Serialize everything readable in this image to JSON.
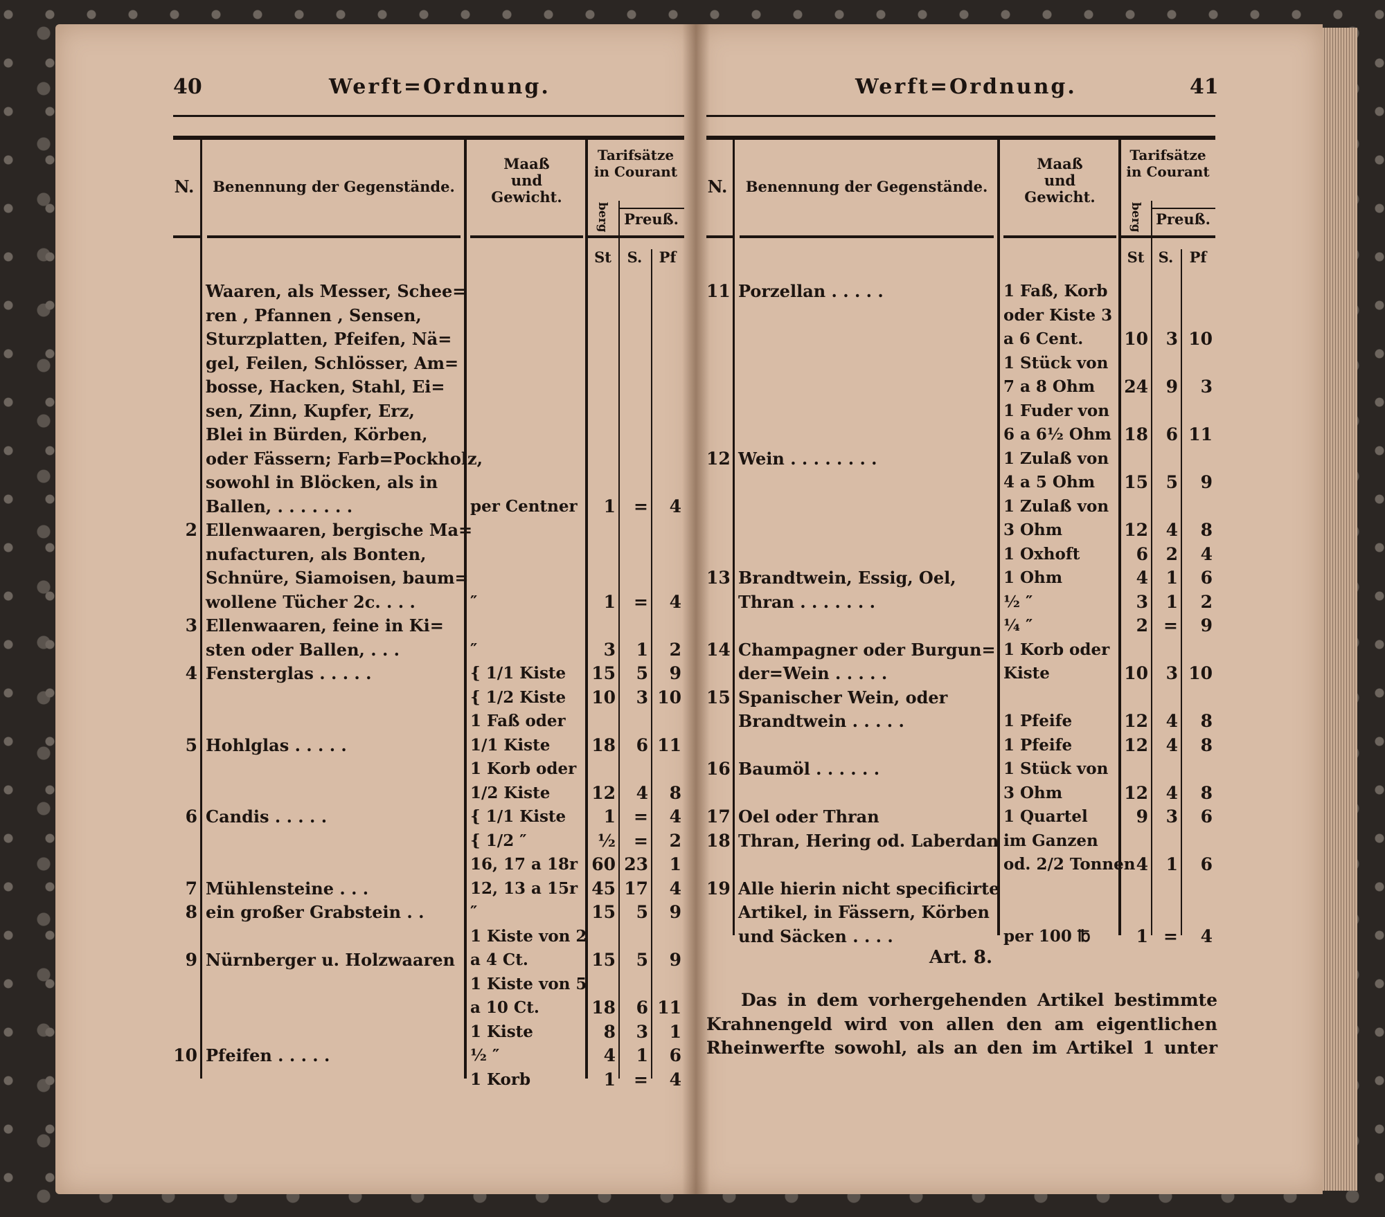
{
  "left_page": {
    "page_number": "40",
    "running_head": "Werft=Ordnung.",
    "headers": {
      "n": "N.",
      "name": "Benennung der Gegenstände.",
      "maass": "Maaß und Gewicht.",
      "tarif": "Tarifsätze in Courant",
      "berg": "berg",
      "preuss": "Preuß.",
      "st": "St",
      "s": "S.",
      "pf": "Pf"
    },
    "lines": [
      [
        "",
        "Waaren, als Messer, Schee=",
        "",
        "",
        "",
        ""
      ],
      [
        "",
        "ren , Pfannen , Sensen,",
        "",
        "",
        "",
        ""
      ],
      [
        "",
        "Sturzplatten, Pfeifen, Nä=",
        "",
        "",
        "",
        ""
      ],
      [
        "",
        "gel, Feilen, Schlösser, Am=",
        "",
        "",
        "",
        ""
      ],
      [
        "",
        "bosse, Hacken, Stahl, Ei=",
        "",
        "",
        "",
        ""
      ],
      [
        "",
        "sen, Zinn, Kupfer, Erz,",
        "",
        "",
        "",
        ""
      ],
      [
        "",
        "Blei in Bürden, Körben,",
        "",
        "",
        "",
        ""
      ],
      [
        "",
        "oder Fässern; Farb=Pockholz,",
        "",
        "",
        "",
        ""
      ],
      [
        "",
        "sowohl in Blöcken, als in",
        "",
        "",
        "",
        ""
      ],
      [
        "",
        "Ballen, . . . . . . .",
        "per Centner",
        "1",
        "=",
        "4"
      ],
      [
        "2",
        "Ellenwaaren, bergische Ma=",
        "",
        "",
        "",
        ""
      ],
      [
        "",
        "nufacturen, als Bonten,",
        "",
        "",
        "",
        ""
      ],
      [
        "",
        "Schnüre, Siamoisen, baum=",
        "",
        "",
        "",
        ""
      ],
      [
        "",
        "wollene Tücher 2c. . . .",
        "″",
        "1",
        "=",
        "4"
      ],
      [
        "3",
        "Ellenwaaren, feine in Ki=",
        "",
        "",
        "",
        ""
      ],
      [
        "",
        "sten oder Ballen, . . .",
        "″",
        "3",
        "1",
        "2"
      ],
      [
        "4",
        "Fensterglas . . . . .",
        "{ 1/1 Kiste",
        "15",
        "5",
        "9"
      ],
      [
        "",
        "",
        "{ 1/2 Kiste",
        "10",
        "3",
        "10"
      ],
      [
        "",
        "",
        "1 Faß oder",
        "",
        "",
        ""
      ],
      [
        "5",
        "Hohlglas . . . . .",
        "1/1 Kiste",
        "18",
        "6",
        "11"
      ],
      [
        "",
        "",
        "1 Korb oder",
        "",
        "",
        ""
      ],
      [
        "",
        "",
        "1/2 Kiste",
        "12",
        "4",
        "8"
      ],
      [
        "6",
        "Candis . . . . .",
        "{ 1/1 Kiste",
        "1",
        "=",
        "4"
      ],
      [
        "",
        "",
        "{ 1/2 ″",
        "½",
        "=",
        "2"
      ],
      [
        "",
        "",
        "16, 17 a 18r",
        "60",
        "23",
        "1"
      ],
      [
        "7",
        "Mühlensteine . . .",
        "12, 13 a 15r",
        "45",
        "17",
        "4"
      ],
      [
        "8",
        "ein großer Grabstein . .",
        "″",
        "15",
        "5",
        "9"
      ],
      [
        "",
        "",
        "1 Kiste von 2",
        "",
        "",
        ""
      ],
      [
        "9",
        "Nürnberger u. Holzwaaren",
        "a 4 Ct.",
        "15",
        "5",
        "9"
      ],
      [
        "",
        "",
        "1 Kiste von 5",
        "",
        "",
        ""
      ],
      [
        "",
        "",
        "a 10 Ct.",
        "18",
        "6",
        "11"
      ],
      [
        "",
        "",
        "1 Kiste",
        "8",
        "3",
        "1"
      ],
      [
        "10",
        "Pfeifen . . . . .",
        "½ ″",
        "4",
        "1",
        "6"
      ],
      [
        "",
        "",
        "1 Korb",
        "1",
        "=",
        "4"
      ]
    ]
  },
  "right_page": {
    "page_number": "41",
    "running_head": "Werft=Ordnung.",
    "headers": {
      "n": "N.",
      "name": "Benennung der Gegenstände.",
      "maass": "Maaß und Gewicht.",
      "tarif": "Tarifsätze in Courant",
      "berg": "berg",
      "preuss": "Preuß.",
      "st": "St",
      "s": "S.",
      "pf": "Pf"
    },
    "lines": [
      [
        "11",
        "Porzellan . . . . .",
        "1 Faß, Korb",
        "",
        "",
        ""
      ],
      [
        "",
        "",
        "oder Kiste 3",
        "",
        "",
        ""
      ],
      [
        "",
        "",
        "a 6 Cent.",
        "10",
        "3",
        "10"
      ],
      [
        "",
        "",
        "1 Stück von",
        "",
        "",
        ""
      ],
      [
        "",
        "",
        "7 a 8 Ohm",
        "24",
        "9",
        "3"
      ],
      [
        "",
        "",
        "1 Fuder von",
        "",
        "",
        ""
      ],
      [
        "",
        "",
        "6 a 6½ Ohm",
        "18",
        "6",
        "11"
      ],
      [
        "12",
        "Wein . . . . . . . .",
        "1 Zulaß von",
        "",
        "",
        ""
      ],
      [
        "",
        "",
        "4 a 5 Ohm",
        "15",
        "5",
        "9"
      ],
      [
        "",
        "",
        "1 Zulaß von",
        "",
        "",
        ""
      ],
      [
        "",
        "",
        "3 Ohm",
        "12",
        "4",
        "8"
      ],
      [
        "",
        "",
        "1 Oxhoft",
        "6",
        "2",
        "4"
      ],
      [
        "13",
        "Brandtwein, Essig, Oel,",
        "1 Ohm",
        "4",
        "1",
        "6"
      ],
      [
        "",
        "Thran . . . . . . .",
        "½ ″",
        "3",
        "1",
        "2"
      ],
      [
        "",
        "",
        "¼ ″",
        "2",
        "=",
        "9"
      ],
      [
        "14",
        "Champagner oder Burgun=",
        "1 Korb oder",
        "",
        "",
        ""
      ],
      [
        "",
        "der=Wein . . . . .",
        "Kiste",
        "10",
        "3",
        "10"
      ],
      [
        "15",
        "Spanischer Wein, oder",
        "",
        "",
        "",
        ""
      ],
      [
        "",
        "Brandtwein . . . . .",
        "1 Pfeife",
        "12",
        "4",
        "8"
      ],
      [
        "",
        "",
        "1 Pfeife",
        "12",
        "4",
        "8"
      ],
      [
        "16",
        "Baumöl . . . . . .",
        "1 Stück von",
        "",
        "",
        ""
      ],
      [
        "",
        "",
        "3 Ohm",
        "12",
        "4",
        "8"
      ],
      [
        "17",
        "Oel oder Thran",
        "1 Quartel",
        "9",
        "3",
        "6"
      ],
      [
        "18",
        "Thran, Hering od. Laberdan",
        "im Ganzen",
        "",
        "",
        ""
      ],
      [
        "",
        "",
        "od. 2/2 Tonnen",
        "4",
        "1",
        "6"
      ],
      [
        "19",
        "Alle hierin nicht specificirte",
        "",
        "",
        "",
        ""
      ],
      [
        "",
        "Artikel, in Fässern, Körben",
        "",
        "",
        "",
        ""
      ],
      [
        "",
        "und Säcken . . . .",
        "per 100 ℔",
        "1",
        "=",
        "4"
      ]
    ],
    "article_heading": "Art. 8.",
    "paragraph": [
      "Das in dem vorhergehenden Artikel bestimmte",
      "Krahnengeld wird von allen den am eigentlichen",
      "Rheinwerfte sowohl, als an den im Artikel 1 unter"
    ]
  }
}
